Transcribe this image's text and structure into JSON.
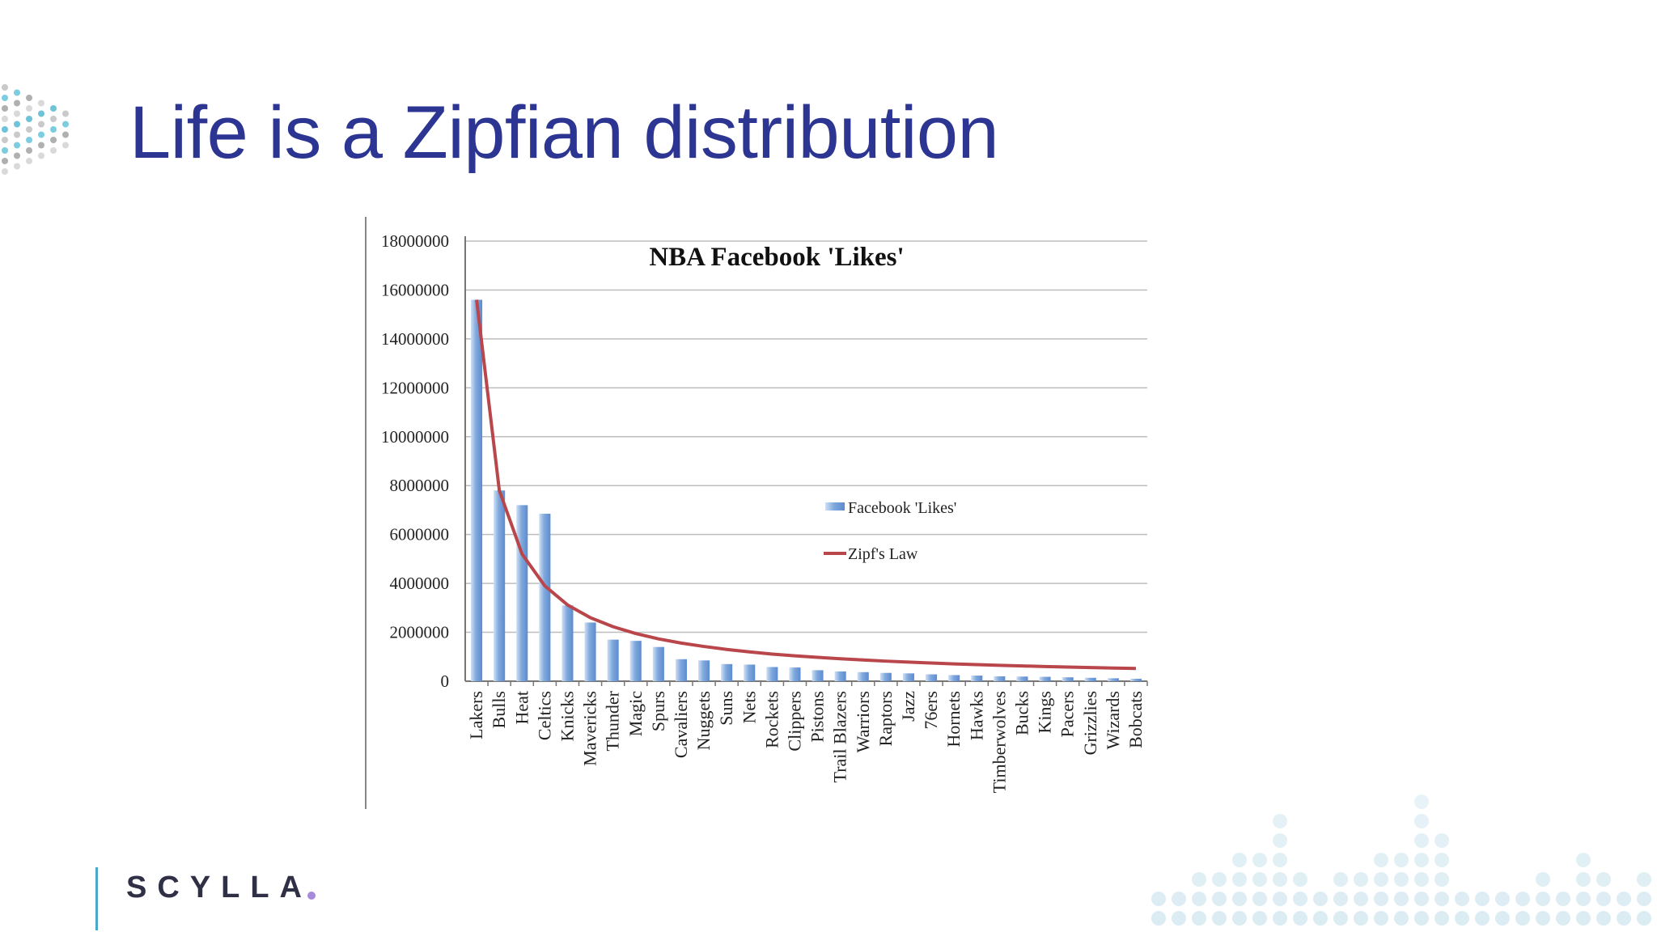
{
  "slide": {
    "title": "Life is a Zipfian distribution",
    "logo_text": "SCYLLA"
  },
  "colors": {
    "title": "#2c3592",
    "bar": "#7fa8dc",
    "zipf_line": "#b8464a",
    "gridline": "#bdbdbd",
    "logo_accent": "#a78bdb",
    "footer_line": "#4aa8c9"
  },
  "chart_data": {
    "type": "bar",
    "title": "NBA Facebook 'Likes'",
    "xlabel": "",
    "ylabel": "",
    "ylim": [
      0,
      18000000
    ],
    "yticks": [
      0,
      2000000,
      4000000,
      6000000,
      8000000,
      10000000,
      12000000,
      14000000,
      16000000,
      18000000
    ],
    "ytick_labels": [
      "0",
      "2000000",
      "4000000",
      "6000000",
      "8000000",
      "10000000",
      "12000000",
      "14000000",
      "16000000",
      "18000000"
    ],
    "grid": true,
    "legend_position": "right-middle",
    "categories": [
      "Lakers",
      "Bulls",
      "Heat",
      "Celtics",
      "Knicks",
      "Mavericks",
      "Thunder",
      "Magic",
      "Spurs",
      "Cavaliers",
      "Nuggets",
      "Suns",
      "Nets",
      "Rockets",
      "Clippers",
      "Pistons",
      "Trail Blazers",
      "Warriors",
      "Raptors",
      "Jazz",
      "76ers",
      "Hornets",
      "Hawks",
      "Timberwolves",
      "Bucks",
      "Kings",
      "Pacers",
      "Grizzlies",
      "Wizards",
      "Bobcats"
    ],
    "series": [
      {
        "name": "Facebook 'Likes'",
        "type": "bar",
        "values": [
          15600000,
          7800000,
          7200000,
          6850000,
          3100000,
          2400000,
          1700000,
          1650000,
          1400000,
          900000,
          850000,
          700000,
          680000,
          580000,
          560000,
          450000,
          400000,
          370000,
          340000,
          320000,
          280000,
          250000,
          230000,
          200000,
          190000,
          180000,
          160000,
          140000,
          120000,
          100000
        ]
      },
      {
        "name": "Zipf's Law",
        "type": "line",
        "values": [
          15600000,
          7800000,
          5200000,
          3900000,
          3120000,
          2600000,
          2230000,
          1950000,
          1730000,
          1560000,
          1420000,
          1300000,
          1200000,
          1110000,
          1040000,
          975000,
          918000,
          867000,
          821000,
          780000,
          743000,
          709000,
          678000,
          650000,
          624000,
          600000,
          578000,
          557000,
          538000,
          520000
        ]
      }
    ]
  }
}
